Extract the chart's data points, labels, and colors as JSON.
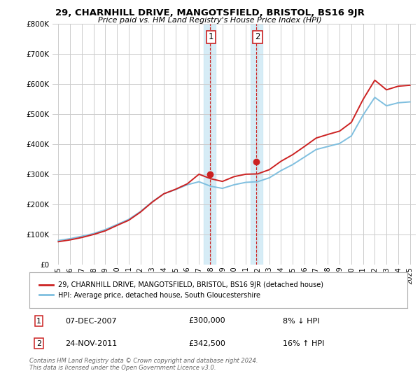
{
  "title": "29, CHARNHILL DRIVE, MANGOTSFIELD, BRISTOL, BS16 9JR",
  "subtitle": "Price paid vs. HM Land Registry's House Price Index (HPI)",
  "legend_line1": "29, CHARNHILL DRIVE, MANGOTSFIELD, BRISTOL, BS16 9JR (detached house)",
  "legend_line2": "HPI: Average price, detached house, South Gloucestershire",
  "sale1_date": "07-DEC-2007",
  "sale1_price": "£300,000",
  "sale1_hpi": "8% ↓ HPI",
  "sale2_date": "24-NOV-2011",
  "sale2_price": "£342,500",
  "sale2_hpi": "16% ↑ HPI",
  "footer": "Contains HM Land Registry data © Crown copyright and database right 2024.\nThis data is licensed under the Open Government Licence v3.0.",
  "hpi_color": "#7fbfdf",
  "price_color": "#cc2222",
  "background_color": "#ffffff",
  "grid_color": "#cccccc",
  "ylim": [
    0,
    800000
  ],
  "yticks": [
    0,
    100000,
    200000,
    300000,
    400000,
    500000,
    600000,
    700000,
    800000
  ],
  "xlim_start": 1994.5,
  "xlim_end": 2025.5,
  "sale1_year": 2007.92,
  "sale2_year": 2011.9,
  "sale1_value": 300000,
  "sale2_value": 342500,
  "shade_x1_start": 2007.4,
  "shade_x1_end": 2008.4,
  "shade_x2_start": 2011.4,
  "shade_x2_end": 2012.4,
  "years_hpi": [
    1995,
    1996,
    1997,
    1998,
    1999,
    2000,
    2001,
    2002,
    2003,
    2004,
    2005,
    2006,
    2007,
    2008,
    2009,
    2010,
    2011,
    2012,
    2013,
    2014,
    2015,
    2016,
    2017,
    2018,
    2019,
    2020,
    2021,
    2022,
    2023,
    2024,
    2025
  ],
  "hpi_values": [
    80000,
    86000,
    94000,
    103000,
    116000,
    133000,
    150000,
    176000,
    208000,
    235000,
    249000,
    265000,
    275000,
    260000,
    253000,
    265000,
    273000,
    275000,
    288000,
    312000,
    332000,
    357000,
    382000,
    392000,
    402000,
    427000,
    496000,
    555000,
    527000,
    537000,
    540000
  ],
  "price_values": [
    76000,
    82000,
    90000,
    100000,
    112000,
    130000,
    147000,
    174000,
    207000,
    235000,
    250000,
    268000,
    300000,
    285000,
    276000,
    292000,
    300000,
    301000,
    315000,
    343000,
    365000,
    392000,
    420000,
    432000,
    443000,
    472000,
    548000,
    612000,
    580000,
    592000,
    595000
  ]
}
